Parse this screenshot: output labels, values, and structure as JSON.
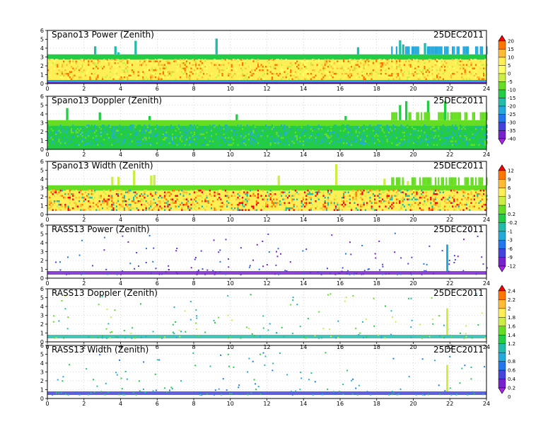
{
  "chart_data": [
    {
      "type": "heatmap",
      "title": "Spano13 Power (Zenith)",
      "date": "25DEC2011",
      "x": {
        "range": [
          0,
          24
        ],
        "ticks": [
          0,
          2,
          4,
          6,
          8,
          10,
          12,
          14,
          16,
          18,
          20,
          22,
          24
        ]
      },
      "y": {
        "range": [
          0,
          6
        ],
        "ticks": [
          0,
          1,
          2,
          3,
          4,
          5,
          6
        ]
      },
      "grid": true,
      "colorbar_group": "power",
      "pattern": "power",
      "background_layers": [
        {
          "y_range": [
            0.0,
            0.4
          ],
          "value": -25
        },
        {
          "y_range": [
            0.4,
            2.7
          ],
          "value": 5
        },
        {
          "y_range": [
            2.7,
            3.3
          ],
          "value": -15
        }
      ]
    },
    {
      "type": "heatmap",
      "title": "Spano13 Doppler (Zenith)",
      "date": "25DEC2011",
      "x": {
        "range": [
          0,
          24
        ],
        "ticks": [
          0,
          2,
          4,
          6,
          8,
          10,
          12,
          14,
          16,
          18,
          20,
          22,
          24
        ]
      },
      "y": {
        "range": [
          0,
          6
        ],
        "ticks": [
          0,
          1,
          2,
          3,
          4,
          5,
          6
        ]
      },
      "grid": true,
      "colorbar_group": "power",
      "pattern": "doppler",
      "background_layers": [
        {
          "y_range": [
            0.0,
            2.7
          ],
          "value": -15
        },
        {
          "y_range": [
            2.7,
            3.3
          ],
          "value": -10
        }
      ]
    },
    {
      "type": "heatmap",
      "title": "Spano13 Width (Zenith)",
      "date": "25DEC2011",
      "x": {
        "range": [
          0,
          24
        ],
        "ticks": [
          0,
          2,
          4,
          6,
          8,
          10,
          12,
          14,
          16,
          18,
          20,
          22,
          24
        ]
      },
      "y": {
        "range": [
          0,
          6
        ],
        "ticks": [
          0,
          1,
          2,
          3,
          4,
          5,
          6
        ]
      },
      "grid": true,
      "colorbar_group": "spectral",
      "pattern": "width",
      "background_layers": [
        {
          "y_range": [
            0.4,
            2.7
          ],
          "value": 3
        },
        {
          "y_range": [
            2.7,
            3.3
          ],
          "value": 0.2
        }
      ]
    },
    {
      "type": "scatter",
      "title": "RASS13 Power (Zenith)",
      "date": "25DEC2011",
      "x": {
        "range": [
          0,
          24
        ],
        "ticks": [
          0,
          2,
          4,
          6,
          8,
          10,
          12,
          14,
          16,
          18,
          20,
          22,
          24
        ]
      },
      "y": {
        "range": [
          0,
          6
        ],
        "ticks": [
          0,
          1,
          2,
          3,
          4,
          5,
          6
        ]
      },
      "grid": true,
      "colorbar_group": "spectral",
      "pattern": "rass_power",
      "band": {
        "y_range": [
          0.4,
          0.8
        ],
        "value": -12
      }
    },
    {
      "type": "scatter",
      "title": "RASS13 Doppler (Zenith)",
      "date": "25DEC2011",
      "x": {
        "range": [
          0,
          24
        ],
        "ticks": [
          0,
          2,
          4,
          6,
          8,
          10,
          12,
          14,
          16,
          18,
          20,
          22,
          24
        ]
      },
      "y": {
        "range": [
          0,
          6
        ],
        "ticks": [
          0,
          1,
          2,
          3,
          4,
          5,
          6
        ]
      },
      "grid": true,
      "colorbar_group": "rass",
      "pattern": "rass_doppler",
      "band": {
        "y_range": [
          0.4,
          0.8
        ],
        "value": 1.1
      }
    },
    {
      "type": "scatter",
      "title": "RASS13 Width (Zenith)",
      "date": "25DEC2011",
      "x": {
        "range": [
          0,
          24
        ],
        "ticks": [
          0,
          2,
          4,
          6,
          8,
          10,
          12,
          14,
          16,
          18,
          20,
          22,
          24
        ]
      },
      "y": {
        "range": [
          0,
          6
        ],
        "ticks": [
          0,
          1,
          2,
          3,
          4,
          5,
          6
        ]
      },
      "grid": true,
      "colorbar_group": "rass",
      "pattern": "rass_width",
      "band": {
        "y_range": [
          0.4,
          0.8
        ],
        "value": 0.5
      }
    }
  ],
  "colorbars": [
    {
      "id": "power",
      "applies_to": [
        0,
        1
      ],
      "labels": [
        "20",
        "15",
        "10",
        "5",
        "0",
        "-5",
        "-10",
        "-15",
        "-20",
        "-25",
        "-30",
        "-35",
        "-40"
      ],
      "colors": [
        "#ff0000",
        "#ff7700",
        "#ffbb33",
        "#ffee55",
        "#ffff66",
        "#ccee44",
        "#66dd22",
        "#22cc44",
        "#22bbaa",
        "#22aadd",
        "#2277ee",
        "#4444dd",
        "#7722cc",
        "#aa22ee"
      ]
    },
    {
      "id": "spectral",
      "applies_to": [
        2,
        3
      ],
      "labels": [
        "12",
        "9",
        "6",
        "3",
        "1",
        "0.2",
        "-0.2",
        "-1",
        "-3",
        "-6",
        "-9",
        "-12"
      ],
      "colors": [
        "#ff0000",
        "#ff7700",
        "#ffbb33",
        "#ffee55",
        "#ccee44",
        "#66dd22",
        "#22cc44",
        "#22bbaa",
        "#22aadd",
        "#2277ee",
        "#4444dd",
        "#7722cc",
        "#aa22ee"
      ]
    },
    {
      "id": "rass",
      "applies_to": [
        4,
        5
      ],
      "labels": [
        "2.4",
        "2.2",
        "2",
        "1.8",
        "1.6",
        "1.4",
        "1.2",
        "1",
        "0.8",
        "0.6",
        "0.4",
        "0.2",
        "0"
      ],
      "colors": [
        "#ff0000",
        "#ff7700",
        "#ffbb33",
        "#ffee55",
        "#ccee44",
        "#66dd22",
        "#22cc44",
        "#22bbaa",
        "#22aadd",
        "#2277ee",
        "#4444dd",
        "#7722cc",
        "#aa22ee"
      ]
    }
  ]
}
